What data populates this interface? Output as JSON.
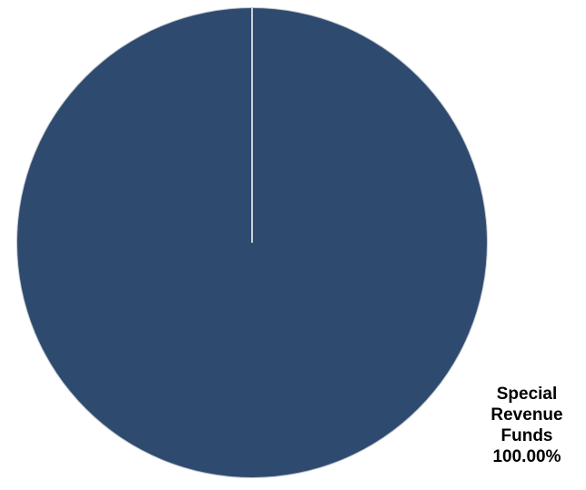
{
  "chart_data": {
    "type": "pie",
    "slices": [
      {
        "name": "Special Revenue Funds",
        "value": 100.0,
        "color": "#2e4a6f"
      }
    ],
    "data_labels": [
      {
        "lines": [
          "Special",
          "Revenue",
          "Funds",
          "100.00%"
        ]
      }
    ],
    "separator_color": "#ffffff",
    "outline_color": "#bfc5cc"
  }
}
